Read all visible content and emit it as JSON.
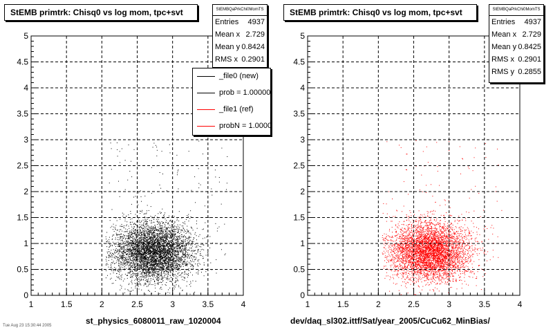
{
  "footer_text": "Tue Aug 23 15:30:44 2005",
  "panels": [
    {
      "title": "StEMB primtrk: Chisq0 vs log mom, tpc+svt",
      "stats": {
        "name": "StEMBQaPrkChi0MomTS",
        "entries_label": "Entries",
        "entries": "4937",
        "mean_x_label": "Mean x",
        "mean_x": "2.729",
        "mean_y_label": "Mean y",
        "mean_y": "0.8424",
        "rms_x_label": "RMS x",
        "rms_x": "0.2901"
      },
      "legend": [
        {
          "label": "_file0 (new)",
          "color": "#000000"
        },
        {
          "label": "prob = 1.000000",
          "color": "#000000"
        },
        {
          "label": "_file1 (ref)",
          "color": "#ff0000"
        },
        {
          "label": "probN = 1.000000",
          "color": "#ff0000"
        }
      ],
      "xtitle": "st_physics_6080011_raw_1020004"
    },
    {
      "title": "StEMB primtrk: Chisq0 vs log mom, tpc+svt",
      "stats": {
        "name": "StEMBQaPrkChi0MomTS",
        "entries_label": "Entries",
        "entries": "4937",
        "mean_x_label": "Mean x",
        "mean_x": "2.729",
        "mean_y_label": "Mean y",
        "mean_y": "0.8425",
        "rms_x_label": "RMS x",
        "rms_x": "0.2901",
        "rms_y_label": "RMS y",
        "rms_y": "0.2855"
      },
      "xtitle": "dev/daq_sl302.ittf/Sat/year_2005/CuCu62_MinBias/"
    }
  ],
  "chart_data": [
    {
      "type": "scatter",
      "title": "StEMB primtrk: Chisq0 vs log mom, tpc+svt",
      "xlabel": "st_physics_6080011_raw_1020004",
      "ylabel": "",
      "xlim": [
        1,
        4
      ],
      "ylim": [
        0,
        5
      ],
      "xticks": [
        1,
        1.5,
        2,
        2.5,
        3,
        3.5,
        4
      ],
      "yticks": [
        0,
        0.5,
        1,
        1.5,
        2,
        2.5,
        3,
        3.5,
        4,
        4.5,
        5
      ],
      "grid": true,
      "point_color": "#000000",
      "n_points": 4937,
      "mean_x": 2.729,
      "mean_y": 0.8424,
      "rms_x": 0.2901,
      "rms_y": 0.2855,
      "legend_position": "top-right"
    },
    {
      "type": "scatter",
      "title": "StEMB primtrk: Chisq0 vs log mom, tpc+svt",
      "xlabel": "dev/daq_sl302.ittf/Sat/year_2005/CuCu62_MinBias/",
      "ylabel": "",
      "xlim": [
        1,
        4
      ],
      "ylim": [
        0,
        5
      ],
      "xticks": [
        1,
        1.5,
        2,
        2.5,
        3,
        3.5,
        4
      ],
      "yticks": [
        0,
        0.5,
        1,
        1.5,
        2,
        2.5,
        3,
        3.5,
        4,
        4.5,
        5
      ],
      "grid": true,
      "point_color": "#ff0000",
      "n_points": 4937,
      "mean_x": 2.729,
      "mean_y": 0.8425,
      "rms_x": 0.2901,
      "rms_y": 0.2855
    }
  ]
}
